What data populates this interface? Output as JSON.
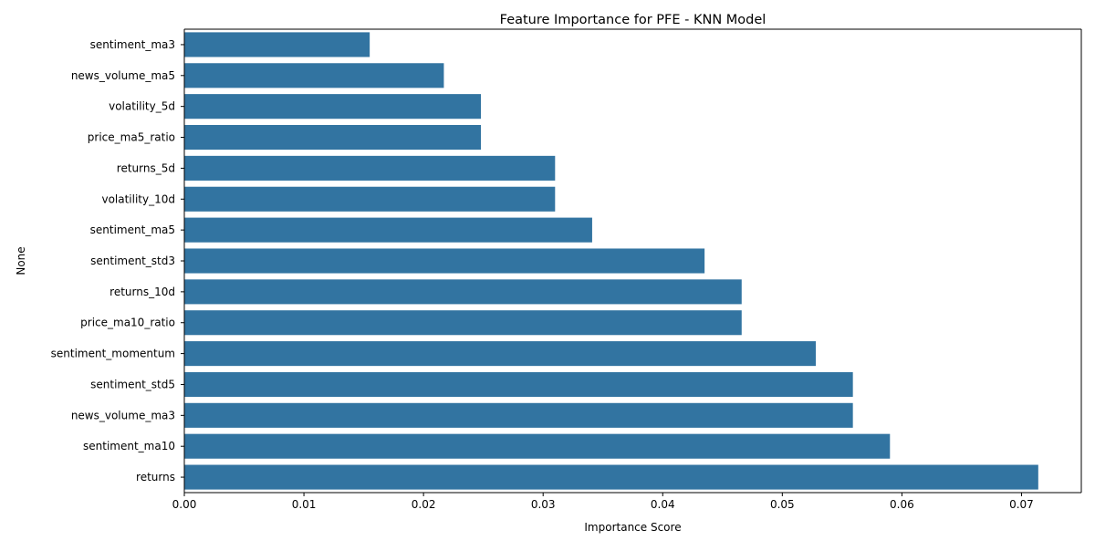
{
  "chart_data": {
    "type": "bar",
    "orientation": "horizontal",
    "title": "Feature Importance for PFE - KNN Model",
    "xlabel": "Importance Score",
    "ylabel": "None",
    "categories": [
      "sentiment_ma3",
      "news_volume_ma5",
      "volatility_5d",
      "price_ma5_ratio",
      "returns_5d",
      "volatility_10d",
      "sentiment_ma5",
      "sentiment_std3",
      "returns_10d",
      "price_ma10_ratio",
      "sentiment_momentum",
      "sentiment_std5",
      "news_volume_ma3",
      "sentiment_ma10",
      "returns"
    ],
    "values": [
      0.0155,
      0.0217,
      0.0248,
      0.0248,
      0.031,
      0.031,
      0.0341,
      0.0435,
      0.0466,
      0.0466,
      0.0528,
      0.0559,
      0.0559,
      0.059,
      0.0714
    ],
    "xlim": [
      0,
      0.075
    ],
    "xticks": [
      0,
      0.01,
      0.02,
      0.03,
      0.04,
      0.05,
      0.06,
      0.07
    ],
    "xtick_labels": [
      "0.00",
      "0.01",
      "0.02",
      "0.03",
      "0.04",
      "0.05",
      "0.06",
      "0.07"
    ],
    "grid": false,
    "bar_color": "#3274a1"
  }
}
